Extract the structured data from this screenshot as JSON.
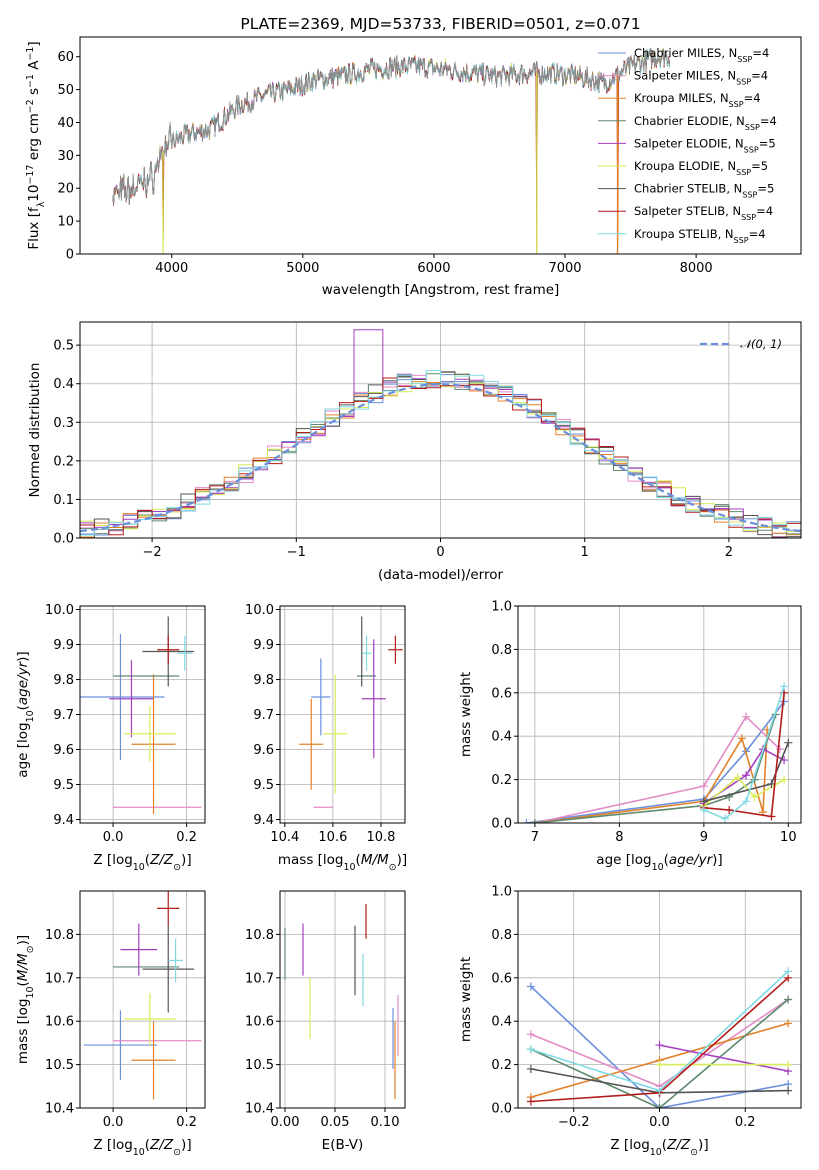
{
  "colors": {
    "Chabrier MILES": "#6a8fdc",
    "Salpeter MILES": "#e38bc6",
    "Kroupa MILES": "#e3822a",
    "Chabrier ELODIE": "#5f8a6e",
    "Salpeter ELODIE": "#a53fc0",
    "Kroupa ELODIE": "#d7ec59",
    "Chabrier STELIB": "#555555",
    "Salpeter STELIB": "#b31b1b",
    "Kroupa STELIB": "#7fd9e3",
    "gauss": "#6a8fdc"
  },
  "chart_data": [
    {
      "id": "spectrum",
      "type": "line",
      "title": "PLATE=2369, MJD=53733, FIBERID=0501, z=0.071",
      "xlabel": "wavelength [Angstrom, rest frame]",
      "ylabel": "Flux [f_λ10^-17 erg cm^-2 s^-1 A^-1]",
      "xlim": [
        3300,
        8800
      ],
      "ylim": [
        0,
        66
      ],
      "xticks": [
        "4000",
        "5000",
        "6000",
        "7000",
        "8000"
      ],
      "yticks": [
        "0",
        "10",
        "20",
        "30",
        "40",
        "50",
        "60"
      ],
      "grid": false,
      "legend_position": "top-right",
      "series": [
        {
          "name": "Chabrier MILES",
          "nssp": "4"
        },
        {
          "name": "Salpeter MILES",
          "nssp": "4"
        },
        {
          "name": "Kroupa MILES",
          "nssp": "4"
        },
        {
          "name": "Chabrier ELODIE",
          "nssp": "4"
        },
        {
          "name": "Salpeter ELODIE",
          "nssp": "5"
        },
        {
          "name": "Kroupa ELODIE",
          "nssp": "5"
        },
        {
          "name": "Chabrier STELIB",
          "nssp": "5"
        },
        {
          "name": "Salpeter STELIB",
          "nssp": "4"
        },
        {
          "name": "Kroupa STELIB",
          "nssp": "4"
        }
      ],
      "data_continuum": {
        "x": [
          3550,
          3700,
          3850,
          3950,
          4100,
          4300,
          4500,
          4700,
          4900,
          5100,
          5300,
          5500,
          5700,
          5900,
          6100,
          6300,
          6500,
          6700,
          6900,
          7100,
          7300,
          7500,
          7700,
          7800
        ],
        "y": [
          18,
          20,
          23,
          33,
          36,
          38,
          45,
          48,
          50,
          53,
          54,
          56,
          57,
          57,
          56,
          55,
          54,
          55,
          55,
          54,
          52,
          57,
          60,
          60
        ]
      },
      "dips": [
        {
          "x": 3933,
          "y": 0
        },
        {
          "x": 6785,
          "y": 0
        },
        {
          "x": 7400,
          "y": 0
        }
      ]
    },
    {
      "id": "residuals",
      "type": "bar",
      "xlabel": "(data-model)/error",
      "ylabel": "Normed distribution",
      "xlim": [
        -2.5,
        2.5
      ],
      "ylim": [
        0,
        0.56
      ],
      "xticks": [
        "−2",
        "−1",
        "0",
        "1",
        "2"
      ],
      "yticks": [
        "0.0",
        "0.1",
        "0.2",
        "0.3",
        "0.4",
        "0.5"
      ],
      "grid": true,
      "legend": "𝒩(0, 1)",
      "legend_position": "top-right",
      "bin_width": 0.1,
      "curve": "normal(0,1)"
    },
    {
      "id": "age_Z",
      "type": "scatter",
      "xlabel": "Z [log10(Z/Z⊙)]",
      "ylabel": "age  [log10(age/yr)]",
      "xlim": [
        -0.09,
        0.25
      ],
      "ylim": [
        9.39,
        10.01
      ],
      "xticks": [
        "0.0",
        "0.2"
      ],
      "yticks": [
        "9.4",
        "9.5",
        "9.6",
        "9.7",
        "9.8",
        "9.9",
        "10.0"
      ],
      "grid": true,
      "points": [
        {
          "series": "Chabrier MILES",
          "x": 0.02,
          "xerr": 0.12,
          "y": 9.75,
          "yerr": 0.18
        },
        {
          "series": "Salpeter MILES",
          "x": 0.12,
          "xerr": 0.12,
          "y": 9.435,
          "yerr": 0.0
        },
        {
          "series": "Kroupa MILES",
          "x": 0.11,
          "xerr": 0.06,
          "y": 9.615,
          "yerr": 0.2
        },
        {
          "series": "Chabrier ELODIE",
          "x": 0.09,
          "xerr": 0.09,
          "y": 9.81,
          "yerr": 0.0
        },
        {
          "series": "Salpeter ELODIE",
          "x": 0.05,
          "xerr": 0.06,
          "y": 9.745,
          "yerr": 0.11
        },
        {
          "series": "Kroupa ELODIE",
          "x": 0.1,
          "xerr": 0.07,
          "y": 9.645,
          "yerr": 0.08
        },
        {
          "series": "Chabrier STELIB",
          "x": 0.15,
          "xerr": 0.07,
          "y": 9.88,
          "yerr": 0.1
        },
        {
          "series": "Salpeter STELIB",
          "x": 0.15,
          "xerr": 0.03,
          "y": 9.885,
          "yerr": 0.04
        },
        {
          "series": "Kroupa STELIB",
          "x": 0.195,
          "xerr": 0.02,
          "y": 9.875,
          "yerr": 0.05
        }
      ]
    },
    {
      "id": "age_mass",
      "type": "scatter",
      "xlabel": "mass [log10(M/M⊙)]",
      "ylabel": "",
      "xlim": [
        10.38,
        10.9
      ],
      "ylim": [
        9.39,
        10.01
      ],
      "xticks": [
        "10.4",
        "10.6",
        "10.8"
      ],
      "yticks": [
        "9.4",
        "9.5",
        "9.6",
        "9.7",
        "9.8",
        "9.9",
        "10.0"
      ],
      "grid": true,
      "points": [
        {
          "series": "Chabrier MILES",
          "x": 10.55,
          "xerr": 0.04,
          "y": 9.75,
          "yerr": 0.11
        },
        {
          "series": "Salpeter MILES",
          "x": 10.56,
          "xerr": 0.04,
          "y": 9.435,
          "yerr": 0.0
        },
        {
          "series": "Kroupa MILES",
          "x": 10.51,
          "xerr": 0.05,
          "y": 9.615,
          "yerr": 0.13
        },
        {
          "series": "Chabrier ELODIE",
          "x": 10.74,
          "xerr": 0.04,
          "y": 9.81,
          "yerr": 0.0
        },
        {
          "series": "Salpeter ELODIE",
          "x": 10.77,
          "xerr": 0.05,
          "y": 9.745,
          "yerr": 0.17
        },
        {
          "series": "Kroupa ELODIE",
          "x": 10.61,
          "xerr": 0.05,
          "y": 9.645,
          "yerr": 0.17
        },
        {
          "series": "Chabrier STELIB",
          "x": 10.72,
          "xerr": 0.0,
          "y": 9.88,
          "yerr": 0.1
        },
        {
          "series": "Salpeter STELIB",
          "x": 10.86,
          "xerr": 0.03,
          "y": 9.885,
          "yerr": 0.04
        },
        {
          "series": "Kroupa STELIB",
          "x": 10.74,
          "xerr": 0.02,
          "y": 9.875,
          "yerr": 0.05
        }
      ]
    },
    {
      "id": "weight_age",
      "type": "line",
      "xlabel": "age  [log10(age/yr)]",
      "ylabel": "mass weight",
      "xlim": [
        6.8,
        10.15
      ],
      "ylim": [
        0,
        1
      ],
      "xticks": [
        "7",
        "8",
        "9",
        "10"
      ],
      "yticks": [
        "0.0",
        "0.2",
        "0.4",
        "0.6",
        "0.8",
        "1.0"
      ],
      "grid": true,
      "series": [
        {
          "name": "Chabrier MILES",
          "x": [
            6.9,
            9.0,
            9.5,
            9.95
          ],
          "y": [
            0.0,
            0.11,
            0.33,
            0.56
          ]
        },
        {
          "name": "Salpeter MILES",
          "x": [
            7.0,
            9.0,
            9.5,
            9.9
          ],
          "y": [
            0.0,
            0.17,
            0.49,
            0.34
          ]
        },
        {
          "name": "Kroupa MILES",
          "x": [
            7.0,
            9.0,
            9.45,
            9.7,
            9.75
          ],
          "y": [
            0.0,
            0.1,
            0.39,
            0.05,
            0.43
          ]
        },
        {
          "name": "Chabrier ELODIE",
          "x": [
            7.0,
            9.0,
            9.3,
            9.6,
            9.85
          ],
          "y": [
            0.0,
            0.08,
            0.12,
            0.2,
            0.5
          ]
        },
        {
          "name": "Salpeter ELODIE",
          "x": [
            9.0,
            9.5,
            9.7,
            9.95
          ],
          "y": [
            0.09,
            0.22,
            0.34,
            0.29
          ]
        },
        {
          "name": "Kroupa ELODIE",
          "x": [
            9.0,
            9.4,
            9.6,
            9.95
          ],
          "y": [
            0.08,
            0.21,
            0.12,
            0.2
          ]
        },
        {
          "name": "Chabrier STELIB",
          "x": [
            9.0,
            9.8,
            10.0
          ],
          "y": [
            0.1,
            0.18,
            0.37
          ]
        },
        {
          "name": "Salpeter STELIB",
          "x": [
            9.0,
            9.3,
            9.8,
            9.95
          ],
          "y": [
            0.07,
            0.06,
            0.03,
            0.6
          ]
        },
        {
          "name": "Kroupa STELIB",
          "x": [
            9.0,
            9.25,
            9.5,
            9.95
          ],
          "y": [
            0.06,
            0.02,
            0.1,
            0.63
          ]
        }
      ]
    },
    {
      "id": "mass_Z",
      "type": "scatter",
      "xlabel": "Z [log10(Z/Z⊙)]",
      "ylabel": "mass [log10(M/M⊙)]",
      "xlim": [
        -0.09,
        0.25
      ],
      "ylim": [
        10.4,
        10.9
      ],
      "xticks": [
        "0.0",
        "0.2"
      ],
      "yticks": [
        "10.4",
        "10.5",
        "10.6",
        "10.7",
        "10.8"
      ],
      "grid": true,
      "points": [
        {
          "series": "Chabrier MILES",
          "x": 0.02,
          "xerr": 0.1,
          "y": 10.545,
          "yerr": 0.08
        },
        {
          "series": "Salpeter MILES",
          "x": 0.12,
          "xerr": 0.12,
          "y": 10.555,
          "yerr": 0.0
        },
        {
          "series": "Kroupa MILES",
          "x": 0.11,
          "xerr": 0.06,
          "y": 10.51,
          "yerr": 0.09
        },
        {
          "series": "Chabrier ELODIE",
          "x": 0.09,
          "xerr": 0.09,
          "y": 10.725,
          "yerr": 0.0
        },
        {
          "series": "Salpeter ELODIE",
          "x": 0.07,
          "xerr": 0.05,
          "y": 10.765,
          "yerr": 0.06
        },
        {
          "series": "Kroupa ELODIE",
          "x": 0.1,
          "xerr": 0.07,
          "y": 10.605,
          "yerr": 0.06
        },
        {
          "series": "Chabrier STELIB",
          "x": 0.15,
          "xerr": 0.07,
          "y": 10.72,
          "yerr": 0.1
        },
        {
          "series": "Salpeter STELIB",
          "x": 0.15,
          "xerr": 0.03,
          "y": 10.86,
          "yerr": 0.04
        },
        {
          "series": "Kroupa STELIB",
          "x": 0.17,
          "xerr": 0.02,
          "y": 10.74,
          "yerr": 0.05
        }
      ]
    },
    {
      "id": "mass_ebv",
      "type": "scatter",
      "xlabel": "E(B-V)",
      "ylabel": "",
      "xlim": [
        -0.005,
        0.12
      ],
      "ylim": [
        10.4,
        10.9
      ],
      "xticks": [
        "0.00",
        "0.05",
        "0.10"
      ],
      "yticks": [
        "10.4",
        "10.5",
        "10.6",
        "10.7",
        "10.8"
      ],
      "grid": true,
      "points": [
        {
          "series": "Chabrier MILES",
          "x": 0.108,
          "yerr": 0.07,
          "y": 10.56
        },
        {
          "series": "Salpeter MILES",
          "x": 0.113,
          "yerr": 0.07,
          "y": 10.59
        },
        {
          "series": "Kroupa MILES",
          "x": 0.11,
          "yerr": 0.09,
          "y": 10.51
        },
        {
          "series": "Chabrier ELODIE",
          "x": 0.0,
          "yerr": 0.06,
          "y": 10.755
        },
        {
          "series": "Salpeter ELODIE",
          "x": 0.018,
          "yerr": 0.06,
          "y": 10.765
        },
        {
          "series": "Kroupa ELODIE",
          "x": 0.025,
          "yerr": 0.07,
          "y": 10.63
        },
        {
          "series": "Chabrier STELIB",
          "x": 0.07,
          "yerr": 0.08,
          "y": 10.74
        },
        {
          "series": "Salpeter STELIB",
          "x": 0.081,
          "yerr": 0.04,
          "y": 10.83
        },
        {
          "series": "Kroupa STELIB",
          "x": 0.078,
          "yerr": 0.06,
          "y": 10.695
        }
      ]
    },
    {
      "id": "weight_Z",
      "type": "line",
      "xlabel": "Z [log10(Z/Z⊙)]",
      "ylabel": "mass weight",
      "xlim": [
        -0.33,
        0.33
      ],
      "ylim": [
        0,
        1
      ],
      "xticks": [
        "−0.2",
        "0.0",
        "0.2"
      ],
      "yticks": [
        "0.0",
        "0.2",
        "0.4",
        "0.6",
        "0.8",
        "1.0"
      ],
      "grid": true,
      "series": [
        {
          "name": "Chabrier MILES",
          "x": [
            -0.3,
            0.0,
            0.3
          ],
          "y": [
            0.56,
            0.0,
            0.11
          ]
        },
        {
          "name": "Salpeter MILES",
          "x": [
            -0.3,
            0.0,
            0.3
          ],
          "y": [
            0.34,
            0.1,
            0.5
          ]
        },
        {
          "name": "Kroupa MILES",
          "x": [
            -0.3,
            0.0,
            0.3
          ],
          "y": [
            0.05,
            0.22,
            0.39
          ]
        },
        {
          "name": "Chabrier ELODIE",
          "x": [
            -0.3,
            0.0,
            0.3
          ],
          "y": [
            0.27,
            0.0,
            0.5
          ]
        },
        {
          "name": "Salpeter ELODIE",
          "x": [
            0.0,
            0.3
          ],
          "y": [
            0.29,
            0.17
          ]
        },
        {
          "name": "Kroupa ELODIE",
          "x": [
            0.0,
            0.3
          ],
          "y": [
            0.2,
            0.2
          ]
        },
        {
          "name": "Chabrier STELIB",
          "x": [
            -0.3,
            0.0,
            0.3
          ],
          "y": [
            0.18,
            0.07,
            0.08
          ]
        },
        {
          "name": "Salpeter STELIB",
          "x": [
            -0.3,
            0.0,
            0.3
          ],
          "y": [
            0.03,
            0.07,
            0.6
          ]
        },
        {
          "name": "Kroupa STELIB",
          "x": [
            -0.3,
            0.0,
            0.3
          ],
          "y": [
            0.27,
            0.08,
            0.63
          ]
        }
      ]
    }
  ]
}
